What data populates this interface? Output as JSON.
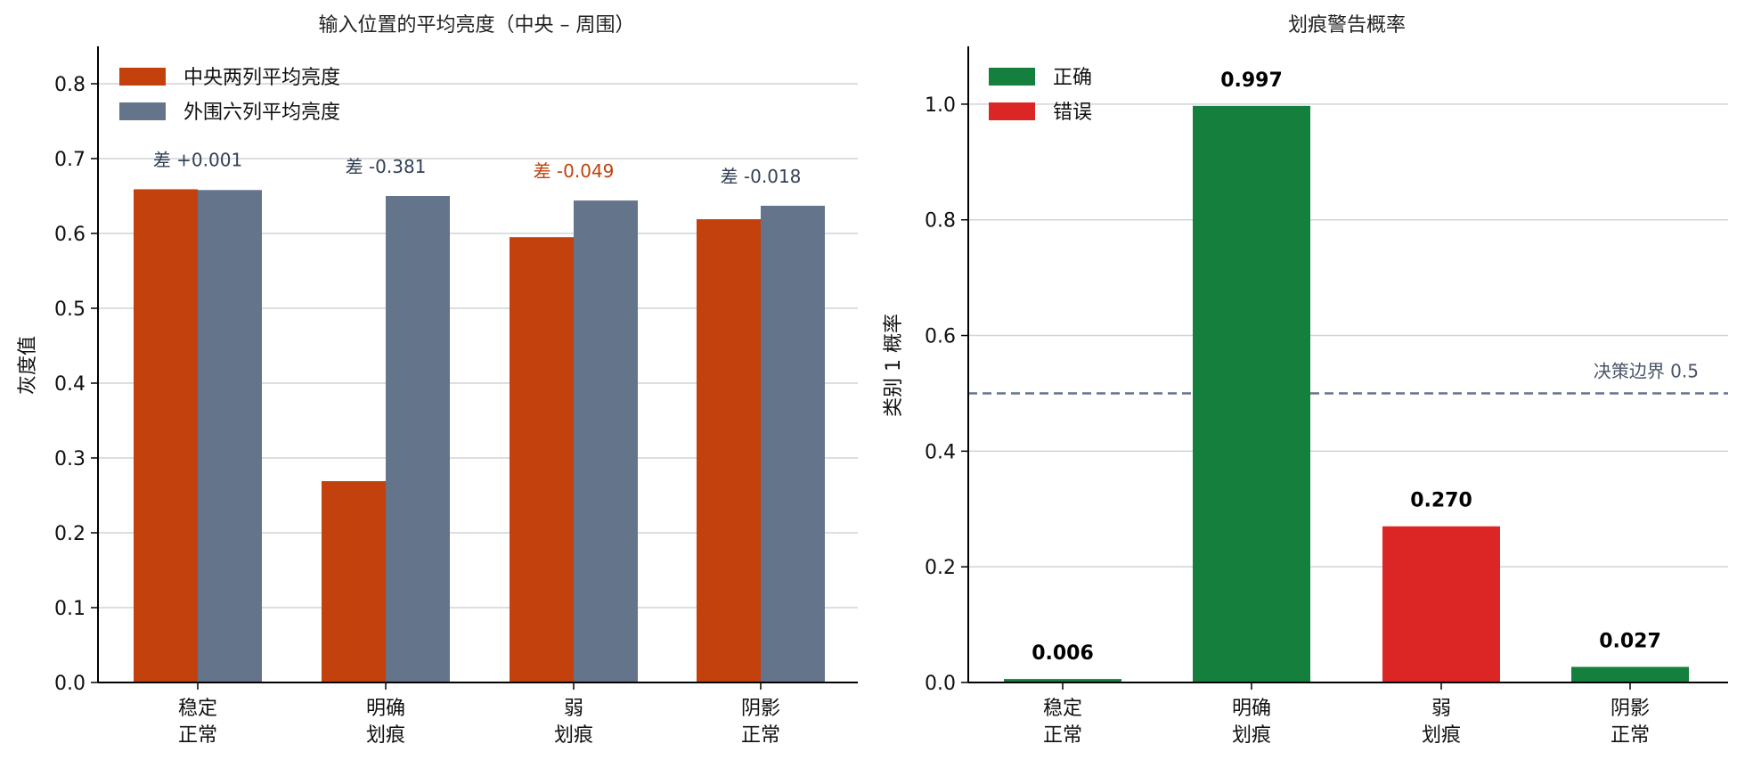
{
  "chart_data": [
    {
      "type": "bar",
      "title": "输入位置的平均亮度（中央 – 周围）",
      "ylabel": "灰度值",
      "xlabel": "",
      "ylim": [
        0,
        0.85
      ],
      "yticks": [
        "0.0",
        "0.1",
        "0.2",
        "0.3",
        "0.4",
        "0.5",
        "0.6",
        "0.7",
        "0.8"
      ],
      "grid": "horizontal",
      "legend_position": "top-left",
      "categories": [
        [
          "稳定",
          "正常"
        ],
        [
          "明确",
          "划痕"
        ],
        [
          "弱",
          "划痕"
        ],
        [
          "阴影",
          "正常"
        ]
      ],
      "series": [
        {
          "name": "中央两列平均亮度",
          "color": "#c2410c",
          "values": [
            0.659,
            0.269,
            0.595,
            0.619
          ]
        },
        {
          "name": "外围六列平均亮度",
          "color": "#64748b",
          "values": [
            0.658,
            0.65,
            0.644,
            0.637
          ]
        }
      ],
      "annotations": [
        {
          "text": "差 +0.001",
          "color": "#334155"
        },
        {
          "text": "差 -0.381",
          "color": "#334155"
        },
        {
          "text": "差 -0.049",
          "color": "#c2410c"
        },
        {
          "text": "差 -0.018",
          "color": "#334155"
        }
      ]
    },
    {
      "type": "bar",
      "title": "划痕警告概率",
      "ylabel": "类别 1 概率",
      "xlabel": "",
      "ylim": [
        0,
        1.1
      ],
      "yticks": [
        "0.0",
        "0.2",
        "0.4",
        "0.6",
        "0.8",
        "1.0"
      ],
      "grid": "horizontal",
      "legend_position": "top-left",
      "categories": [
        [
          "稳定",
          "正常"
        ],
        [
          "明确",
          "划痕"
        ],
        [
          "弱",
          "划痕"
        ],
        [
          "阴影",
          "正常"
        ]
      ],
      "values": [
        0.006,
        0.997,
        0.27,
        0.027
      ],
      "value_labels": [
        "0.006",
        "0.997",
        "0.270",
        "0.027"
      ],
      "correct": [
        true,
        true,
        false,
        true
      ],
      "legend": [
        {
          "name": "正确",
          "color": "#15803d"
        },
        {
          "name": "错误",
          "color": "#dc2626"
        }
      ],
      "threshold": {
        "value": 0.5,
        "label": "决策边界 0.5",
        "color": "#64748b"
      }
    }
  ]
}
